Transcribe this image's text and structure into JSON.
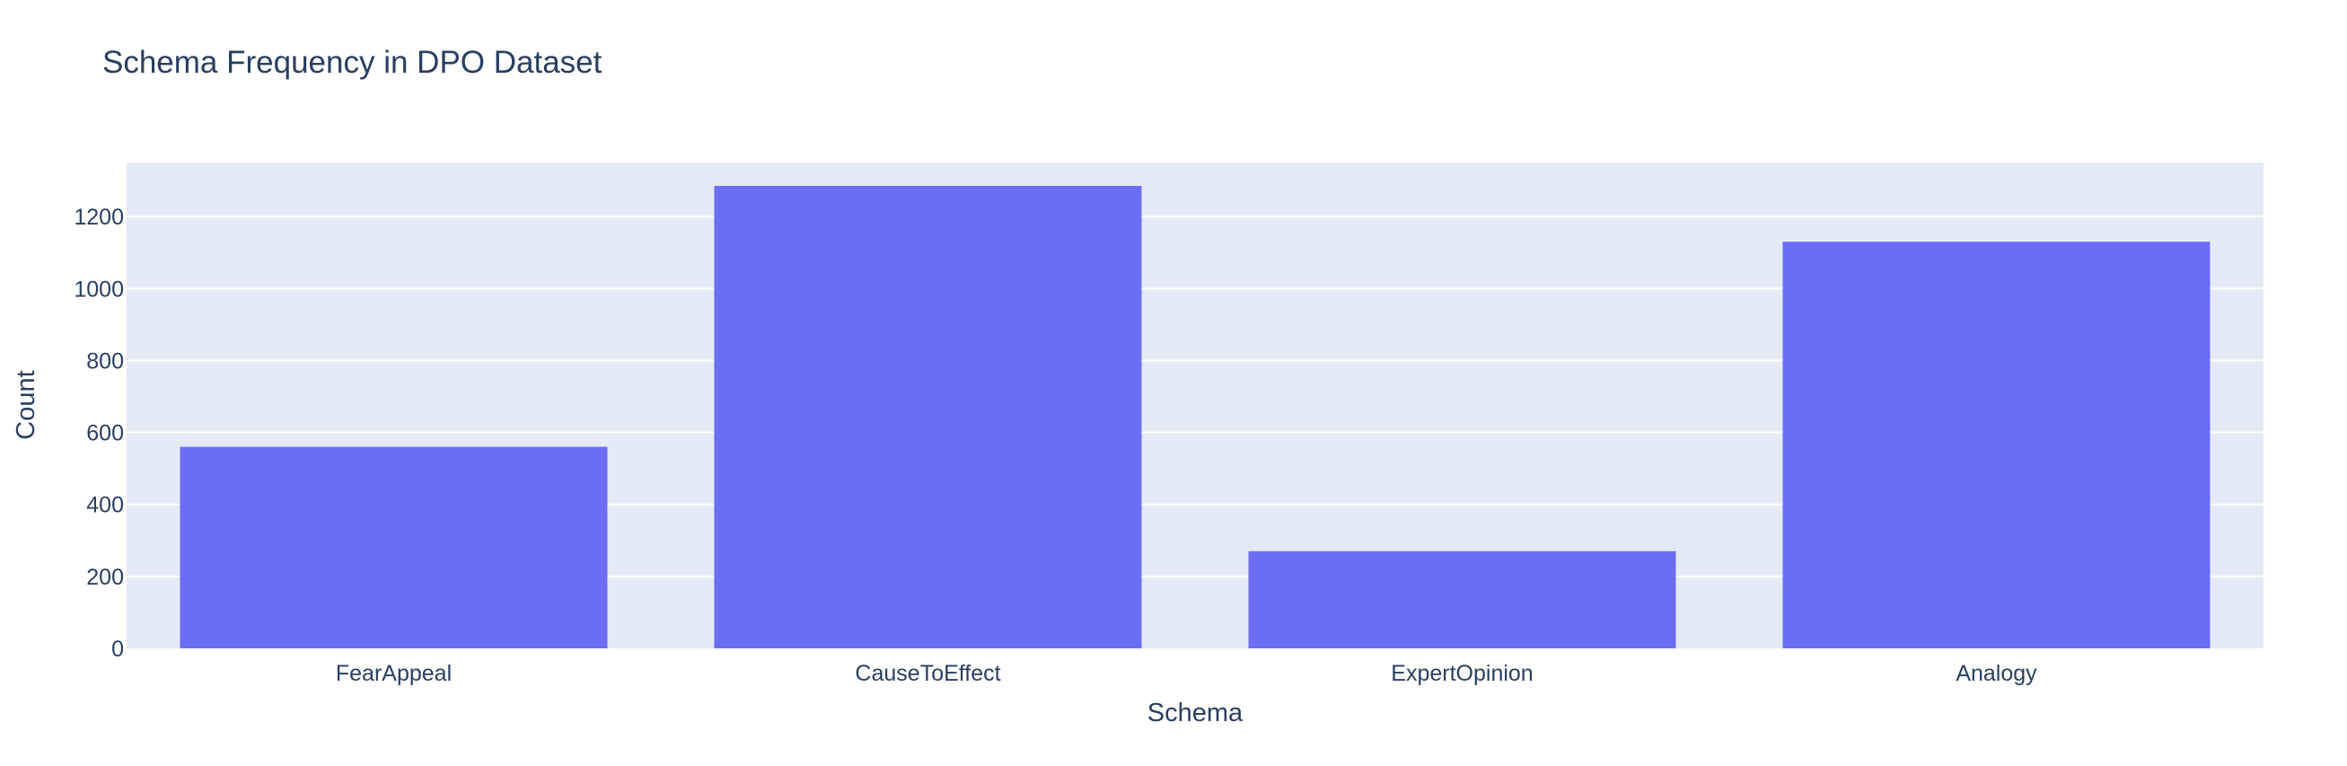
{
  "chart_data": {
    "type": "bar",
    "title": "Schema Frequency in DPO Dataset",
    "xlabel": "Schema",
    "ylabel": "Count",
    "categories": [
      "FearAppeal",
      "CauseToEffect",
      "ExpertOpinion",
      "Analogy"
    ],
    "values": [
      560,
      1285,
      270,
      1130
    ],
    "ylim": [
      0,
      1350
    ],
    "yticks": [
      0,
      200,
      400,
      600,
      800,
      1000,
      1200
    ],
    "grid": true,
    "legend": "none"
  },
  "colors": {
    "bar": "#6b6ef3",
    "plot_bg": "#e5ebf6",
    "grid": "#ffffff",
    "text": "#2a3f5f"
  }
}
